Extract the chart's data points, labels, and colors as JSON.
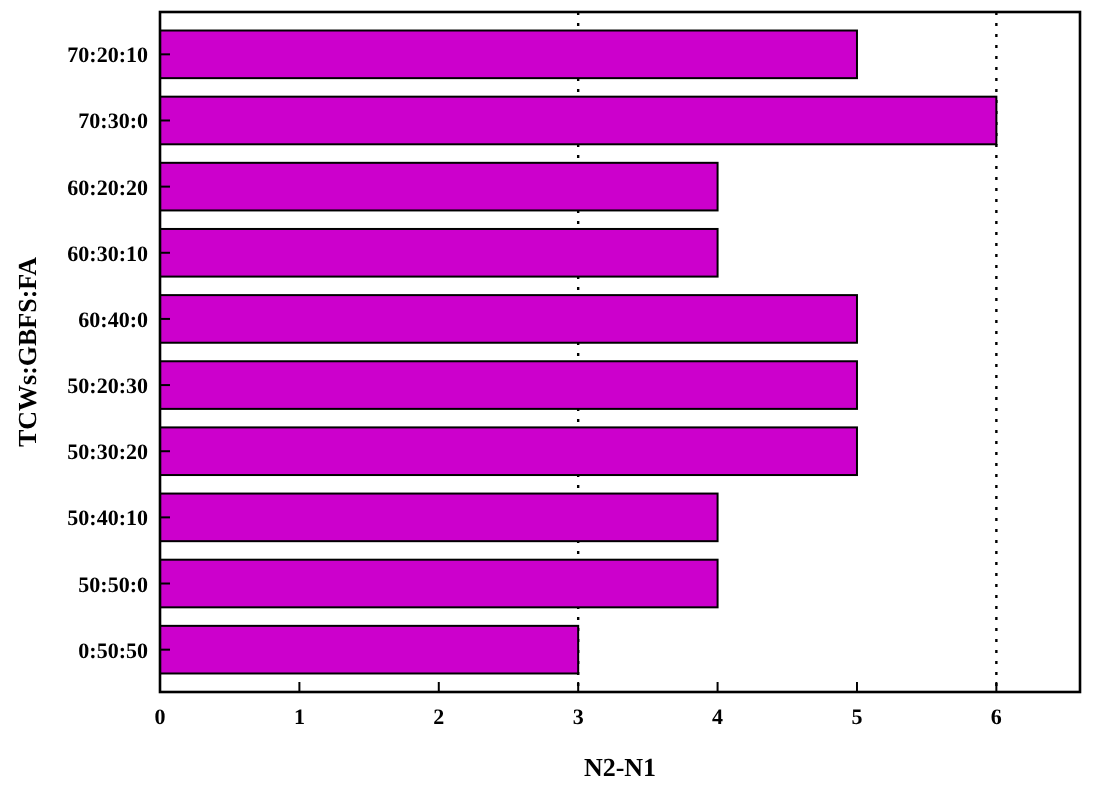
{
  "chart_data": {
    "type": "bar",
    "orientation": "horizontal",
    "xlabel": "N2-N1",
    "ylabel": "TCWs:GBFS:FA",
    "categories": [
      "70:20:10",
      "70:30:0",
      "60:20:20",
      "60:30:10",
      "60:40:0",
      "50:20:30",
      "50:30:20",
      "50:40:10",
      "50:50:0",
      "0:50:50"
    ],
    "values": [
      5,
      6,
      4,
      4,
      5,
      5,
      5,
      4,
      4,
      3
    ],
    "color": "#cc00cc",
    "xlim": [
      0,
      6.6
    ],
    "xticks": [
      0,
      1,
      2,
      3,
      4,
      5,
      6
    ],
    "ref_lines": [
      {
        "axis": "x",
        "value": 3,
        "line_style": "dotted",
        "color": "#000000"
      },
      {
        "axis": "x",
        "value": 6,
        "line_style": "dotted",
        "color": "#000000"
      }
    ]
  }
}
